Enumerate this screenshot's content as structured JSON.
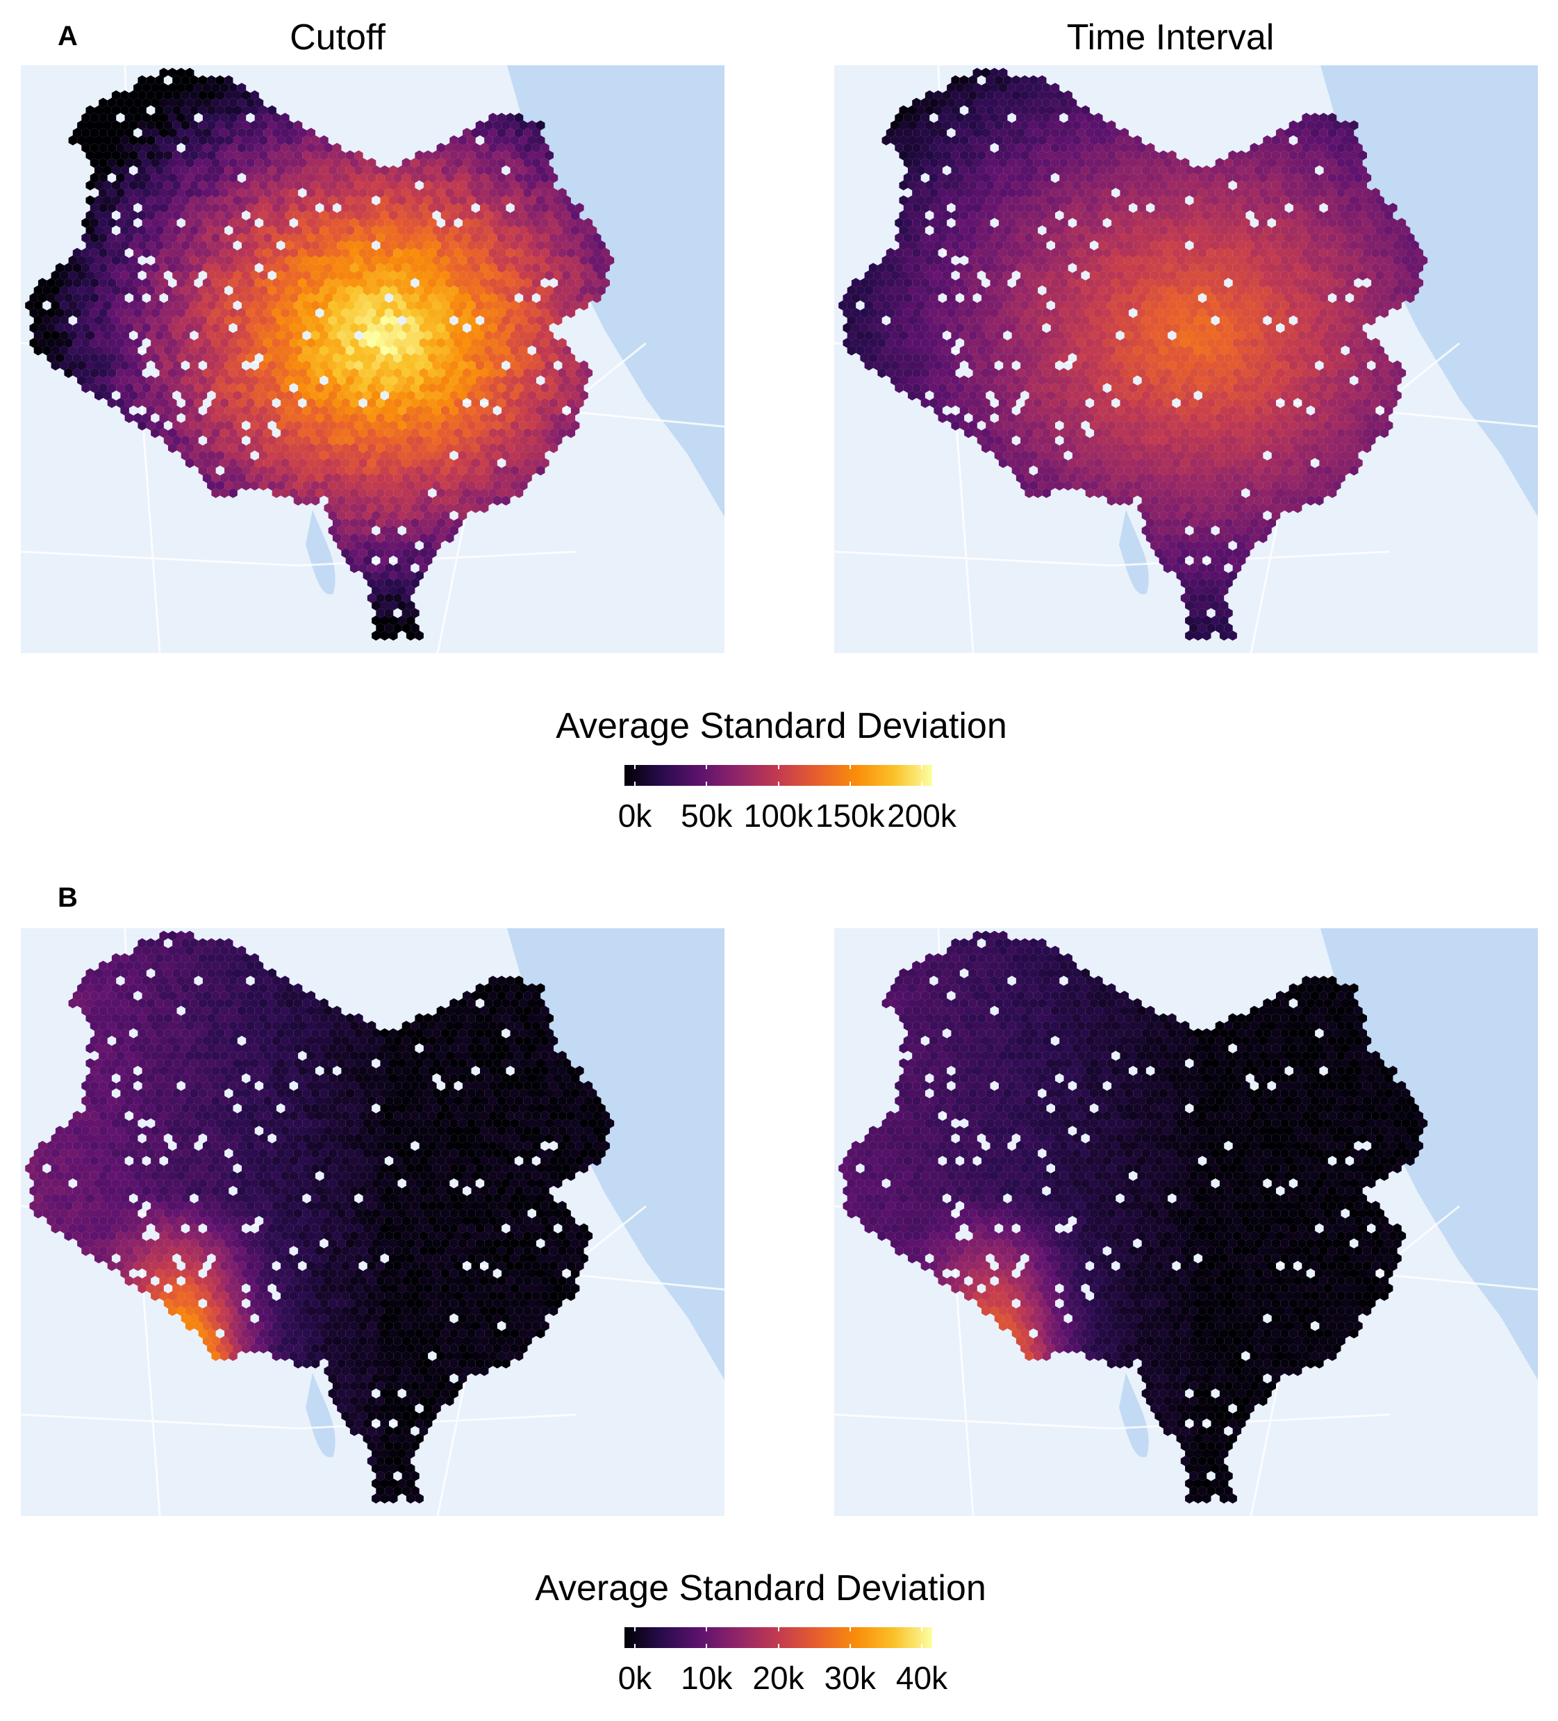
{
  "panels": {
    "a": {
      "letter": "A",
      "titles": [
        "Cutoff",
        "Time Interval"
      ],
      "legend": {
        "title": "Average Standard Deviation",
        "ticks": [
          "0k",
          "50k",
          "100k",
          "150k",
          "200k"
        ],
        "range": [
          0,
          220000
        ]
      }
    },
    "b": {
      "letter": "B",
      "legend": {
        "title": "Average Standard Deviation",
        "ticks": [
          "0k",
          "10k",
          "20k",
          "30k",
          "40k"
        ],
        "range": [
          0,
          42000
        ]
      }
    }
  },
  "colors": {
    "water": "#c2daf3",
    "land": "#e9f1fb",
    "roads": "#ffffff",
    "colormap": [
      "#000004",
      "#2a0c4e",
      "#5f136e",
      "#932667",
      "#c33b4f",
      "#e75e2e",
      "#f98c0a",
      "#fac127",
      "#fcffa4"
    ]
  }
}
